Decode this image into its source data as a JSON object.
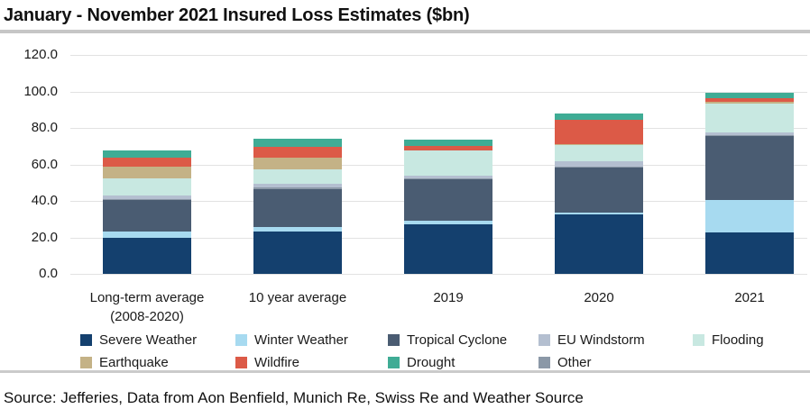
{
  "title": "January - November 2021 Insured Loss Estimates ($bn)",
  "source": "Source: Jefferies, Data from Aon Benfield, Munich Re, Swiss Re and Weather Source",
  "colors": {
    "gridline": "#e2e2e2",
    "title_rule": "#c6c6c6",
    "text": "#1a1a1a"
  },
  "chart_data": {
    "type": "bar",
    "stacked": true,
    "title": "January - November 2021 Insured Loss Estimates ($bn)",
    "xlabel": "",
    "ylabel": "",
    "ylim": [
      0,
      120
    ],
    "ytick_step": 20,
    "ytick_labels": [
      "0.0",
      "20.0",
      "40.0",
      "60.0",
      "80.0",
      "100.0",
      "120.0"
    ],
    "grid": true,
    "legend_position": "bottom",
    "categories": [
      {
        "label": "Long-term average",
        "sublabel": "(2008-2020)"
      },
      {
        "label": "10 year average",
        "sublabel": ""
      },
      {
        "label": "2019",
        "sublabel": ""
      },
      {
        "label": "2020",
        "sublabel": ""
      },
      {
        "label": "2021",
        "sublabel": ""
      }
    ],
    "series": [
      {
        "name": "Severe Weather",
        "color": "#14406e",
        "legend_index": 0,
        "values": [
          19.5,
          23.0,
          27.0,
          32.5,
          22.5
        ]
      },
      {
        "name": "Winter Weather",
        "color": "#a7daf0",
        "legend_index": 1,
        "values": [
          3.5,
          2.5,
          2.0,
          1.0,
          18.0
        ]
      },
      {
        "name": "Tropical Cyclone",
        "color": "#4a5c72",
        "legend_index": 2,
        "values": [
          17.5,
          21.0,
          23.0,
          24.5,
          35.0
        ]
      },
      {
        "name": "Other",
        "color": "#8b98a7",
        "legend_index": 8,
        "values": [
          0.7,
          0.7,
          0.5,
          0.7,
          0.5
        ]
      },
      {
        "name": "EU Windstorm",
        "color": "#b4bfd0",
        "legend_index": 3,
        "values": [
          2.0,
          2.0,
          1.5,
          3.0,
          1.5
        ]
      },
      {
        "name": "Flooding",
        "color": "#c8e8e1",
        "legend_index": 4,
        "values": [
          9.0,
          8.0,
          13.5,
          9.0,
          16.0
        ]
      },
      {
        "name": "Earthquake",
        "color": "#c4b286",
        "legend_index": 5,
        "values": [
          6.5,
          6.5,
          0.3,
          0.5,
          1.0
        ]
      },
      {
        "name": "Wildfire",
        "color": "#dc5a47",
        "legend_index": 6,
        "values": [
          5.0,
          6.0,
          2.5,
          13.0,
          2.0
        ]
      },
      {
        "name": "Drought",
        "color": "#3fac95",
        "legend_index": 7,
        "values": [
          4.0,
          4.5,
          3.2,
          3.5,
          3.0
        ]
      }
    ],
    "totals": [
      67.7,
      74.2,
      73.5,
      87.7,
      99.5
    ]
  }
}
